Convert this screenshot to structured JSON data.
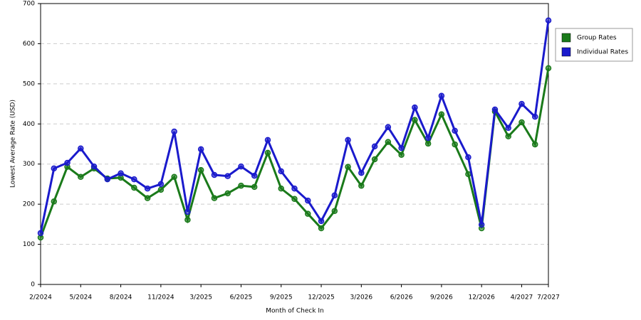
{
  "chart_data": {
    "type": "line",
    "x_label": "Month of Check In",
    "y_label": "Lowest Average Rate (USD)",
    "categories": [
      "2/2024",
      null,
      null,
      "5/2024",
      null,
      null,
      "8/2024",
      null,
      null,
      "11/2024",
      null,
      null,
      "3/2025",
      null,
      null,
      "6/2025",
      null,
      null,
      "9/2025",
      null,
      null,
      "12/2025",
      null,
      null,
      "3/2026",
      null,
      null,
      "6/2026",
      null,
      null,
      "9/2026",
      null,
      null,
      "12/2026",
      null,
      null,
      "4/2027",
      null,
      "7/2027"
    ],
    "series": [
      {
        "name": "Group Rates",
        "color": "#1a7a1a",
        "values": [
          117,
          207,
          293,
          268,
          289,
          264,
          266,
          241,
          215,
          236,
          268,
          161,
          285,
          215,
          227,
          246,
          243,
          328,
          239,
          213,
          176,
          140,
          183,
          293,
          246,
          312,
          355,
          323,
          410,
          351,
          424,
          349,
          275,
          140,
          431,
          369,
          404,
          349,
          539
        ]
      },
      {
        "name": "Individual Rates",
        "color": "#1a1acc",
        "values": [
          128,
          289,
          303,
          339,
          294,
          262,
          277,
          262,
          239,
          250,
          381,
          181,
          337,
          273,
          270,
          294,
          271,
          360,
          282,
          239,
          209,
          158,
          222,
          360,
          278,
          344,
          392,
          340,
          441,
          365,
          470,
          383,
          317,
          149,
          436,
          390,
          450,
          418,
          658
        ]
      }
    ],
    "ylim": [
      0,
      700
    ],
    "yticks": [
      0,
      100,
      200,
      300,
      400,
      500,
      600,
      700
    ],
    "grid": true,
    "legend": "right"
  }
}
